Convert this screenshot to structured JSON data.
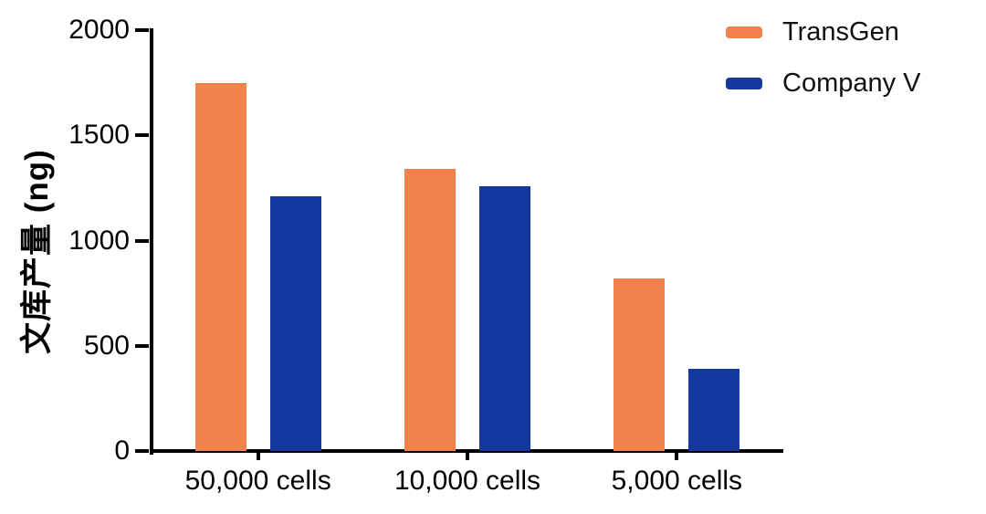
{
  "chart_data": {
    "type": "bar",
    "title": "",
    "ylabel": "文库产量 (ng)",
    "xlabel": "",
    "categories": [
      "50,000 cells",
      "10,000 cells",
      "5,000 cells"
    ],
    "series": [
      {
        "name": "TransGen",
        "color": "#F0824C",
        "values": [
          1750,
          1340,
          820
        ]
      },
      {
        "name": "Company V",
        "color": "#14399E",
        "values": [
          1210,
          1260,
          390
        ]
      }
    ],
    "ylim": [
      0,
      2000
    ],
    "yticks": [
      0,
      500,
      1000,
      1500,
      2000
    ],
    "grid": false,
    "legend_position": "top-right",
    "axis_color": "#000000"
  }
}
